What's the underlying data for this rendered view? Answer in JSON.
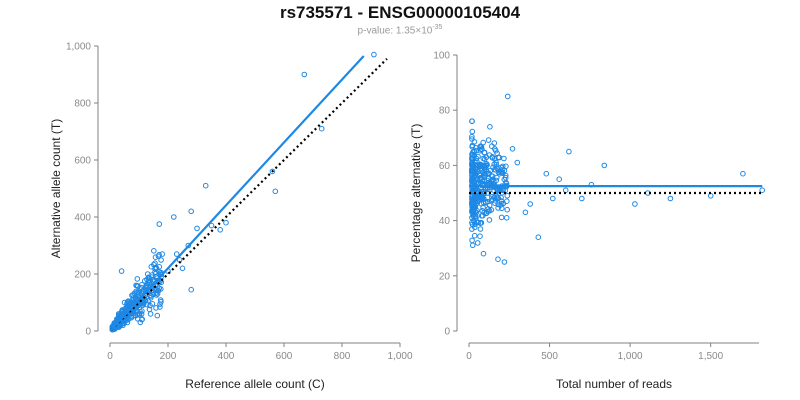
{
  "title": "rs735571 - ENSG00000105404",
  "subtitle": {
    "prefix": "p-value: 1.35×10",
    "exponent": "-35"
  },
  "colors": {
    "points": "#1e88e5",
    "fit": "#1e88e5",
    "reference": "#000000",
    "axis": "#808080",
    "ticks": "#8a8a8a"
  },
  "chart_data": [
    {
      "type": "scatter",
      "xlabel": "Reference allele count (C)",
      "ylabel": "Alternative allele count (T)",
      "xlim": [
        0,
        1000
      ],
      "ylim": [
        0,
        1000
      ],
      "xticks": [
        "0",
        "200",
        "400",
        "600",
        "800",
        "1,000"
      ],
      "yticks": [
        "0",
        "200",
        "400",
        "600",
        "800",
        "1,000"
      ],
      "fit_line": {
        "x": [
          5,
          875
        ],
        "y": [
          5,
          965
        ]
      },
      "reference_line": {
        "x": [
          5,
          955
        ],
        "y": [
          5,
          955
        ]
      },
      "outliers": [
        [
          910,
          970
        ],
        [
          670,
          900
        ],
        [
          730,
          710
        ],
        [
          560,
          560
        ],
        [
          570,
          490
        ],
        [
          330,
          510
        ],
        [
          220,
          400
        ],
        [
          280,
          420
        ],
        [
          300,
          360
        ],
        [
          350,
          370
        ],
        [
          380,
          355
        ],
        [
          400,
          380
        ],
        [
          270,
          300
        ],
        [
          180,
          270
        ],
        [
          230,
          270
        ],
        [
          240,
          250
        ],
        [
          280,
          145
        ],
        [
          40,
          210
        ],
        [
          250,
          220
        ],
        [
          200,
          210
        ],
        [
          150,
          180
        ],
        [
          170,
          150
        ],
        [
          130,
          200
        ],
        [
          100,
          120
        ],
        [
          140,
          60
        ],
        [
          50,
          100
        ],
        [
          110,
          70
        ],
        [
          90,
          160
        ],
        [
          60,
          30
        ],
        [
          30,
          50
        ]
      ],
      "cloud": {
        "n": 420,
        "xmax": 170,
        "spread": 0.3,
        "seed": 7
      }
    },
    {
      "type": "scatter",
      "xlabel": "Total number of reads",
      "ylabel": "Percentage alternative (T)",
      "xlim": [
        0,
        1800
      ],
      "ylim": [
        0,
        100
      ],
      "xticks": [
        "0",
        "500",
        "1,000",
        "1,500"
      ],
      "yticks": [
        "0",
        "20",
        "40",
        "60",
        "80",
        "100"
      ],
      "fit_line": {
        "x": [
          0,
          1820
        ],
        "y": [
          52.5,
          52.5
        ]
      },
      "reference_line": {
        "x": [
          0,
          1820
        ],
        "y": [
          50,
          50
        ]
      },
      "outliers": [
        [
          240,
          85
        ],
        [
          220,
          25
        ],
        [
          180,
          26
        ],
        [
          430,
          34
        ],
        [
          620,
          65
        ],
        [
          840,
          60
        ],
        [
          1030,
          46
        ],
        [
          1700,
          57
        ],
        [
          1820,
          51
        ],
        [
          1500,
          49
        ],
        [
          1250,
          48
        ],
        [
          1110,
          50
        ],
        [
          760,
          53
        ],
        [
          700,
          48
        ],
        [
          560,
          55
        ],
        [
          480,
          57
        ],
        [
          380,
          46
        ],
        [
          300,
          61
        ],
        [
          270,
          66
        ],
        [
          130,
          74
        ],
        [
          90,
          28
        ],
        [
          350,
          43
        ],
        [
          520,
          48
        ],
        [
          600,
          51
        ]
      ],
      "cloud": {
        "n": 380,
        "xmax": 220,
        "spread": 9,
        "seed": 11
      }
    }
  ]
}
